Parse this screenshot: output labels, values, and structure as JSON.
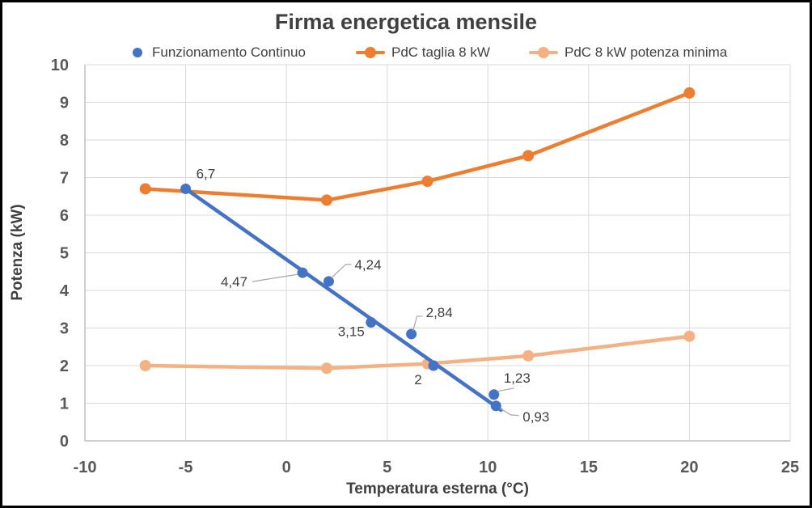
{
  "chart": {
    "title": "Firma energetica mensile",
    "x_title": "Temperatura esterna (°C)",
    "y_title": "Potenza (kW)"
  },
  "legend": {
    "position": "top",
    "items": [
      {
        "label": "Funzionamento Continuo",
        "marker": "dot",
        "color": "#4472C4"
      },
      {
        "label": "PdC taglia 8 kW",
        "marker": "line-dot",
        "color": "#ED7D31"
      },
      {
        "label": "PdC 8 kW potenza minima",
        "marker": "line-dot",
        "color": "#F4B183"
      }
    ]
  },
  "chart_data": {
    "type": "line",
    "title": "Firma energetica mensile",
    "xlabel": "Temperatura esterna (°C)",
    "ylabel": "Potenza (kW)",
    "xlim": [
      -10,
      25
    ],
    "ylim": [
      0,
      10
    ],
    "x_ticks": [
      -10,
      -5,
      0,
      5,
      10,
      15,
      20,
      25
    ],
    "y_ticks": [
      0,
      1,
      2,
      3,
      4,
      5,
      6,
      7,
      8,
      9,
      10
    ],
    "grid": true,
    "legend_position": "top",
    "colors": {
      "gridline": "#D9D9D9",
      "axis_line": "#BFBFBF",
      "leader_line": "#A6A6A6",
      "tick_text": "#595959",
      "label_text": "#404040"
    },
    "series": [
      {
        "name": "Funzionamento Continuo",
        "type": "scatter",
        "color": "#4472C4",
        "marker_radius": 6.5,
        "trendline": {
          "x1": -5,
          "y1": 6.7,
          "x2": 10.65,
          "y2": 0.82,
          "width": 4.5
        },
        "points": [
          {
            "x": -5,
            "y": 6.7,
            "label": "6,7",
            "anchor": "start",
            "dx": 13,
            "dy": -13
          },
          {
            "x": 0.8,
            "y": 4.47,
            "label": "4,47",
            "anchor": "end",
            "dx": -68,
            "dy": 17,
            "leader": [
              [
                -62,
                11
              ],
              [
                -6,
                2
              ]
            ]
          },
          {
            "x": 2.1,
            "y": 4.24,
            "label": "4,24",
            "anchor": "start",
            "dx": 32,
            "dy": -15,
            "leader": [
              [
                3,
                -4
              ],
              [
                21,
                -21
              ],
              [
                28,
                -21
              ]
            ]
          },
          {
            "x": 4.2,
            "y": 3.15,
            "label": "3,15",
            "anchor": "end",
            "dx": -8,
            "dy": 17
          },
          {
            "x": 6.2,
            "y": 2.84,
            "label": "2,84",
            "anchor": "start",
            "dx": 18,
            "dy": -21,
            "leader": [
              [
                2,
                -4
              ],
              [
                7,
                -22
              ],
              [
                14,
                -22
              ]
            ]
          },
          {
            "x": 7.3,
            "y": 2,
            "label": "2",
            "anchor": "middle",
            "dx": -19,
            "dy": 23
          },
          {
            "x": 10.3,
            "y": 1.23,
            "label": "1,23",
            "anchor": "start",
            "dx": 12,
            "dy": -15,
            "leader": [
              [
                4,
                -4
              ],
              [
                25,
                -8
              ]
            ]
          },
          {
            "x": 10.4,
            "y": 0.93,
            "label": "0,93",
            "anchor": "start",
            "dx": 33,
            "dy": 19,
            "leader": [
              [
                5,
                3
              ],
              [
                18,
                11
              ],
              [
                28,
                12
              ]
            ]
          }
        ]
      },
      {
        "name": "PdC taglia 8 kW",
        "type": "line",
        "color": "#ED7D31",
        "line_width": 4.5,
        "marker_radius": 7,
        "points": [
          {
            "x": -7,
            "y": 6.7
          },
          {
            "x": 2,
            "y": 6.4
          },
          {
            "x": 7,
            "y": 6.9
          },
          {
            "x": 12,
            "y": 7.58
          },
          {
            "x": 20,
            "y": 9.25
          }
        ]
      },
      {
        "name": "PdC 8 kW potenza minima",
        "type": "line",
        "color": "#F4B183",
        "line_width": 4.5,
        "marker_radius": 7,
        "points": [
          {
            "x": -7,
            "y": 2.0
          },
          {
            "x": 2,
            "y": 1.93
          },
          {
            "x": 7,
            "y": 2.05
          },
          {
            "x": 12,
            "y": 2.26
          },
          {
            "x": 20,
            "y": 2.78
          }
        ]
      }
    ]
  }
}
